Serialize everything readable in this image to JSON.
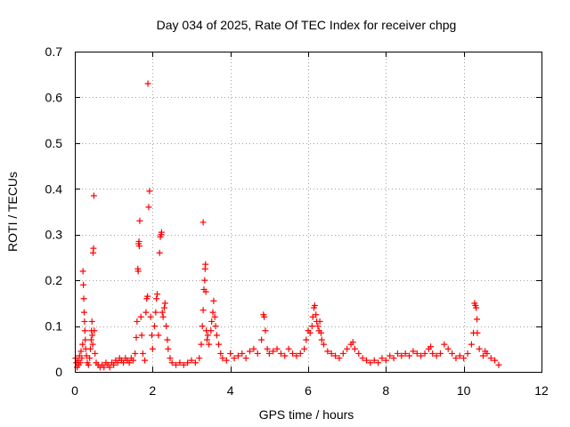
{
  "chart_data": {
    "type": "scatter",
    "title": "Day 034 of 2025, Rate Of TEC Index for receiver chpg",
    "xlabel": "GPS time / hours",
    "ylabel": "ROTI / TECUs",
    "xlim": [
      0,
      12
    ],
    "ylim": [
      0,
      0.7
    ],
    "xticks": [
      0,
      2,
      4,
      6,
      8,
      10,
      12
    ],
    "yticks": [
      0,
      0.1,
      0.2,
      0.3,
      0.4,
      0.5,
      0.6,
      0.7
    ],
    "xtick_labels": [
      "0",
      "2",
      "4",
      "6",
      "8",
      "10",
      "12"
    ],
    "ytick_labels": [
      "0",
      "0.1",
      "0.2",
      "0.3",
      "0.4",
      "0.5",
      "0.6",
      "0.7"
    ],
    "grid": true,
    "marker": "+",
    "series": [
      {
        "name": "ROTI",
        "color": "#ff0000",
        "points": [
          [
            0.02,
            0.03
          ],
          [
            0.04,
            0.02
          ],
          [
            0.06,
            0.01
          ],
          [
            0.08,
            0.025
          ],
          [
            0.1,
            0.015
          ],
          [
            0.12,
            0.035
          ],
          [
            0.14,
            0.02
          ],
          [
            0.16,
            0.045
          ],
          [
            0.18,
            0.03
          ],
          [
            0.2,
            0.06
          ],
          [
            0.21,
            0.22
          ],
          [
            0.22,
            0.19
          ],
          [
            0.23,
            0.16
          ],
          [
            0.24,
            0.13
          ],
          [
            0.25,
            0.11
          ],
          [
            0.26,
            0.09
          ],
          [
            0.27,
            0.07
          ],
          [
            0.28,
            0.05
          ],
          [
            0.3,
            0.035
          ],
          [
            0.32,
            0.02
          ],
          [
            0.35,
            0.015
          ],
          [
            0.38,
            0.03
          ],
          [
            0.4,
            0.05
          ],
          [
            0.42,
            0.07
          ],
          [
            0.43,
            0.09
          ],
          [
            0.44,
            0.11
          ],
          [
            0.45,
            0.08
          ],
          [
            0.46,
            0.06
          ],
          [
            0.47,
            0.26
          ],
          [
            0.48,
            0.27
          ],
          [
            0.49,
            0.385
          ],
          [
            0.5,
            0.09
          ],
          [
            0.52,
            0.04
          ],
          [
            0.55,
            0.02
          ],
          [
            0.6,
            0.015
          ],
          [
            0.65,
            0.01
          ],
          [
            0.7,
            0.015
          ],
          [
            0.75,
            0.01
          ],
          [
            0.8,
            0.02
          ],
          [
            0.85,
            0.015
          ],
          [
            0.9,
            0.01
          ],
          [
            0.95,
            0.02
          ],
          [
            1.0,
            0.015
          ],
          [
            1.05,
            0.025
          ],
          [
            1.1,
            0.02
          ],
          [
            1.15,
            0.03
          ],
          [
            1.2,
            0.025
          ],
          [
            1.25,
            0.02
          ],
          [
            1.3,
            0.03
          ],
          [
            1.35,
            0.025
          ],
          [
            1.4,
            0.02
          ],
          [
            1.45,
            0.03
          ],
          [
            1.5,
            0.025
          ],
          [
            1.55,
            0.04
          ],
          [
            1.58,
            0.075
          ],
          [
            1.6,
            0.11
          ],
          [
            1.62,
            0.225
          ],
          [
            1.63,
            0.22
          ],
          [
            1.64,
            0.28
          ],
          [
            1.65,
            0.285
          ],
          [
            1.66,
            0.275
          ],
          [
            1.67,
            0.33
          ],
          [
            1.7,
            0.12
          ],
          [
            1.72,
            0.08
          ],
          [
            1.75,
            0.04
          ],
          [
            1.8,
            0.025
          ],
          [
            1.83,
            0.13
          ],
          [
            1.85,
            0.16
          ],
          [
            1.87,
            0.165
          ],
          [
            1.88,
            0.63
          ],
          [
            1.9,
            0.36
          ],
          [
            1.92,
            0.395
          ],
          [
            1.95,
            0.12
          ],
          [
            1.98,
            0.08
          ],
          [
            2.0,
            0.05
          ],
          [
            2.05,
            0.1
          ],
          [
            2.08,
            0.13
          ],
          [
            2.1,
            0.16
          ],
          [
            2.12,
            0.17
          ],
          [
            2.15,
            0.08
          ],
          [
            2.18,
            0.26
          ],
          [
            2.2,
            0.295
          ],
          [
            2.22,
            0.3
          ],
          [
            2.23,
            0.305
          ],
          [
            2.25,
            0.13
          ],
          [
            2.27,
            0.12
          ],
          [
            2.3,
            0.14
          ],
          [
            2.32,
            0.15
          ],
          [
            2.35,
            0.1
          ],
          [
            2.38,
            0.07
          ],
          [
            2.4,
            0.05
          ],
          [
            2.45,
            0.03
          ],
          [
            2.5,
            0.02
          ],
          [
            2.6,
            0.015
          ],
          [
            2.7,
            0.02
          ],
          [
            2.8,
            0.015
          ],
          [
            2.9,
            0.02
          ],
          [
            3.0,
            0.025
          ],
          [
            3.1,
            0.02
          ],
          [
            3.2,
            0.03
          ],
          [
            3.25,
            0.06
          ],
          [
            3.28,
            0.1
          ],
          [
            3.3,
            0.135
          ],
          [
            3.32,
            0.18
          ],
          [
            3.34,
            0.2
          ],
          [
            3.35,
            0.225
          ],
          [
            3.36,
            0.235
          ],
          [
            3.37,
            0.175
          ],
          [
            3.38,
            0.09
          ],
          [
            3.3,
            0.327
          ],
          [
            3.4,
            0.07
          ],
          [
            3.42,
            0.08
          ],
          [
            3.45,
            0.06
          ],
          [
            3.5,
            0.09
          ],
          [
            3.52,
            0.11
          ],
          [
            3.55,
            0.13
          ],
          [
            3.57,
            0.155
          ],
          [
            3.6,
            0.12
          ],
          [
            3.62,
            0.1
          ],
          [
            3.65,
            0.08
          ],
          [
            3.7,
            0.06
          ],
          [
            3.75,
            0.04
          ],
          [
            3.8,
            0.03
          ],
          [
            3.9,
            0.025
          ],
          [
            4.0,
            0.04
          ],
          [
            4.1,
            0.03
          ],
          [
            4.2,
            0.035
          ],
          [
            4.3,
            0.04
          ],
          [
            4.4,
            0.03
          ],
          [
            4.5,
            0.045
          ],
          [
            4.6,
            0.05
          ],
          [
            4.7,
            0.04
          ],
          [
            4.8,
            0.07
          ],
          [
            4.85,
            0.125
          ],
          [
            4.87,
            0.12
          ],
          [
            4.9,
            0.09
          ],
          [
            4.95,
            0.05
          ],
          [
            5.0,
            0.04
          ],
          [
            5.1,
            0.045
          ],
          [
            5.2,
            0.05
          ],
          [
            5.3,
            0.04
          ],
          [
            5.4,
            0.035
          ],
          [
            5.5,
            0.05
          ],
          [
            5.6,
            0.04
          ],
          [
            5.7,
            0.035
          ],
          [
            5.8,
            0.04
          ],
          [
            5.9,
            0.05
          ],
          [
            5.95,
            0.07
          ],
          [
            6.0,
            0.09
          ],
          [
            6.05,
            0.085
          ],
          [
            6.1,
            0.1
          ],
          [
            6.12,
            0.12
          ],
          [
            6.15,
            0.14
          ],
          [
            6.17,
            0.145
          ],
          [
            6.2,
            0.125
          ],
          [
            6.22,
            0.11
          ],
          [
            6.25,
            0.1
          ],
          [
            6.28,
            0.09
          ],
          [
            6.3,
            0.11
          ],
          [
            6.33,
            0.085
          ],
          [
            6.35,
            0.07
          ],
          [
            6.4,
            0.06
          ],
          [
            6.5,
            0.045
          ],
          [
            6.6,
            0.04
          ],
          [
            6.7,
            0.035
          ],
          [
            6.8,
            0.03
          ],
          [
            6.9,
            0.04
          ],
          [
            7.0,
            0.05
          ],
          [
            7.1,
            0.06
          ],
          [
            7.15,
            0.065
          ],
          [
            7.2,
            0.05
          ],
          [
            7.3,
            0.04
          ],
          [
            7.4,
            0.03
          ],
          [
            7.5,
            0.025
          ],
          [
            7.6,
            0.02
          ],
          [
            7.7,
            0.025
          ],
          [
            7.8,
            0.02
          ],
          [
            7.9,
            0.03
          ],
          [
            8.0,
            0.025
          ],
          [
            8.1,
            0.035
          ],
          [
            8.2,
            0.03
          ],
          [
            8.3,
            0.04
          ],
          [
            8.4,
            0.035
          ],
          [
            8.5,
            0.04
          ],
          [
            8.6,
            0.035
          ],
          [
            8.7,
            0.045
          ],
          [
            8.8,
            0.04
          ],
          [
            8.9,
            0.035
          ],
          [
            9.0,
            0.04
          ],
          [
            9.1,
            0.05
          ],
          [
            9.15,
            0.055
          ],
          [
            9.2,
            0.04
          ],
          [
            9.3,
            0.035
          ],
          [
            9.4,
            0.04
          ],
          [
            9.5,
            0.06
          ],
          [
            9.6,
            0.05
          ],
          [
            9.7,
            0.04
          ],
          [
            9.8,
            0.03
          ],
          [
            9.9,
            0.035
          ],
          [
            10.0,
            0.03
          ],
          [
            10.1,
            0.04
          ],
          [
            10.2,
            0.06
          ],
          [
            10.25,
            0.085
          ],
          [
            10.28,
            0.15
          ],
          [
            10.3,
            0.145
          ],
          [
            10.32,
            0.14
          ],
          [
            10.34,
            0.115
          ],
          [
            10.35,
            0.085
          ],
          [
            10.4,
            0.05
          ],
          [
            10.5,
            0.035
          ],
          [
            10.55,
            0.045
          ],
          [
            10.6,
            0.04
          ],
          [
            10.7,
            0.03
          ],
          [
            10.8,
            0.025
          ],
          [
            10.9,
            0.015
          ]
        ]
      }
    ]
  }
}
